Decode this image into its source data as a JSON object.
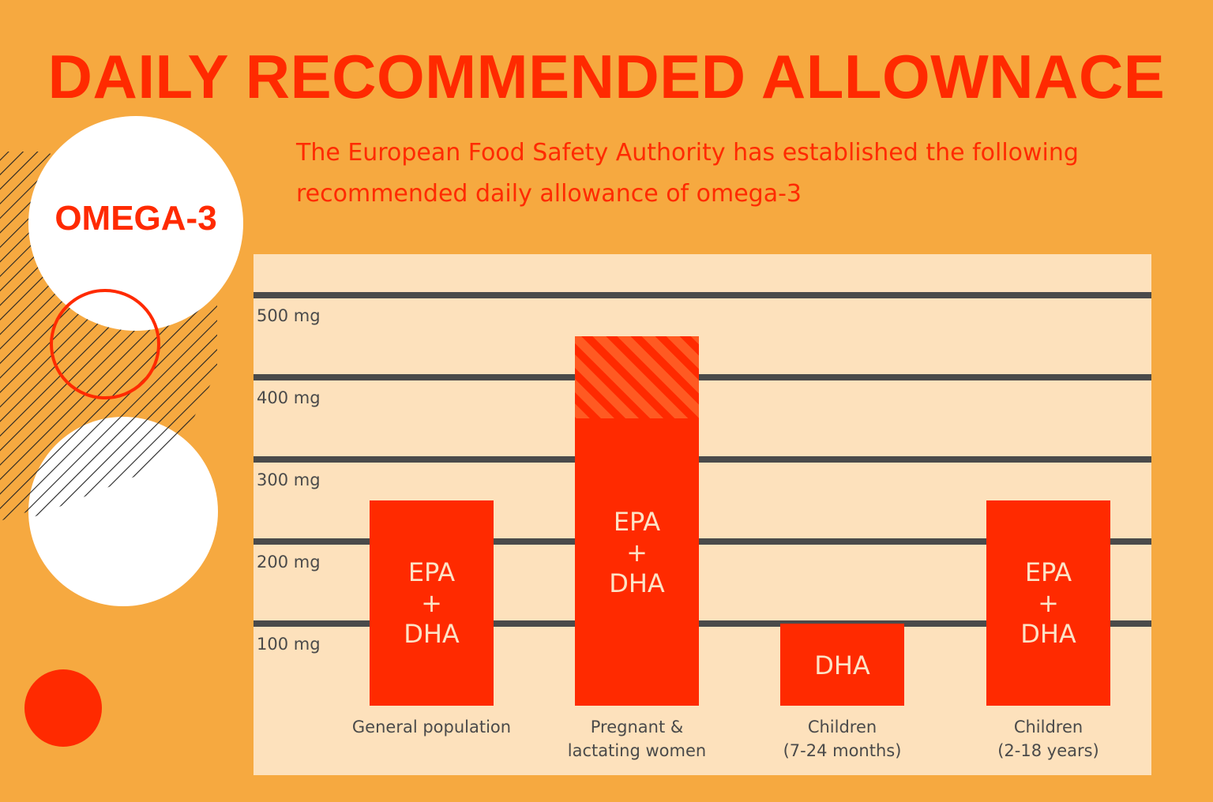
{
  "header": {
    "title": "DAILY RECOMMENDED ALLOWNACE",
    "subtitle_line1": "The European Food Safety Authority has established the following",
    "subtitle_line2": "recommended daily allowance of omega-3"
  },
  "badge": {
    "label": "OMEGA-3"
  },
  "colors": {
    "background": "#F6A940",
    "accent": "#FF2A00",
    "panel": "#FDE1BC",
    "grid": "#4A4A4A"
  },
  "chart_data": {
    "type": "bar",
    "title": "DAILY RECOMMENDED ALLOWNACE",
    "ylabel": "",
    "xlabel": "",
    "ylim": [
      0,
      550
    ],
    "grid": true,
    "yticks": [
      100,
      200,
      300,
      400,
      500
    ],
    "ytick_labels": [
      "100 mg",
      "200 mg",
      "300 mg",
      "400 mg",
      "500 mg"
    ],
    "categories": [
      "General population",
      "Pregnant & lactating women",
      "Children (7-24 months)",
      "Children (2-18 years)"
    ],
    "category_labels": [
      "General population",
      "Pregnant &\nlactating women",
      "Children\n(7-24 months)",
      "Children\n(2-18 years)"
    ],
    "values": [
      250,
      350,
      100,
      250
    ],
    "extra_range": [
      0,
      100,
      0,
      0
    ],
    "bar_labels": [
      "EPA\n+\nDHA",
      "EPA\n+\nDHA",
      "DHA",
      "EPA\n+\nDHA"
    ]
  }
}
